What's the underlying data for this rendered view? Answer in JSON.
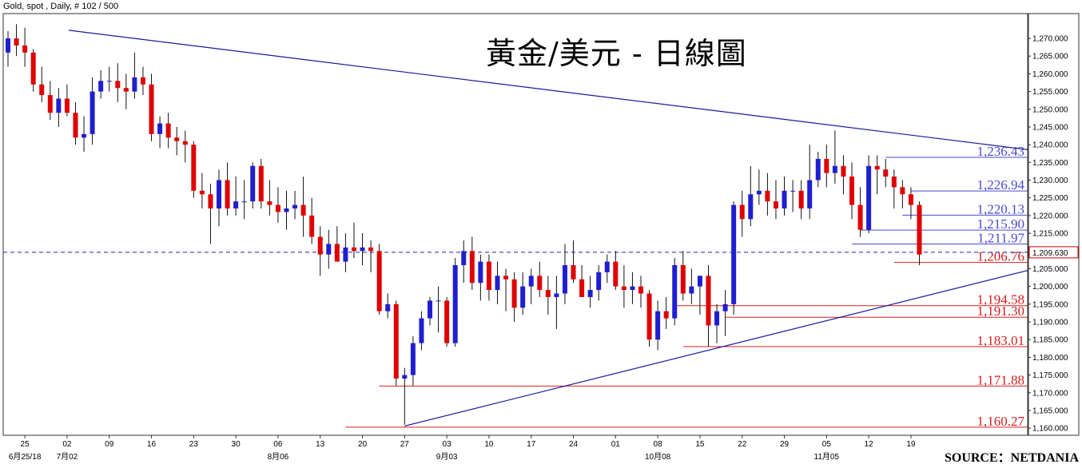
{
  "header": "Gold, spot , Daily, # 102 / 500",
  "title": "黃金/美元 - 日線圖",
  "source": "SOURCE：NETDANIA",
  "colors": {
    "up": "#1f1fd0",
    "down": "#e00000",
    "trend": "#1a1a99",
    "support": "#d42020",
    "resistance": "#4a4acc",
    "dashed": "#2222aa"
  },
  "chart_data": {
    "type": "candlestick",
    "ylim": [
      1158,
      1277
    ],
    "yticks": [
      1160,
      1165,
      1170,
      1175,
      1180,
      1185,
      1190,
      1195,
      1200,
      1205,
      1210,
      1215,
      1220,
      1225,
      1230,
      1235,
      1240,
      1245,
      1250,
      1255,
      1260,
      1265,
      1270
    ],
    "current_price": "1,209.630",
    "x_day_labels": [
      "25",
      "02",
      "09",
      "16",
      "23",
      "30",
      "06",
      "13",
      "20",
      "27",
      "03",
      "10",
      "17",
      "24",
      "01",
      "08",
      "15",
      "22",
      "29",
      "05",
      "12",
      "19"
    ],
    "x_month_labels": [
      {
        "label": "6月25/18",
        "at": "25"
      },
      {
        "label": "7月02",
        "at": "02"
      },
      {
        "label": "8月06",
        "at": "06"
      },
      {
        "label": "9月03",
        "at": "03"
      },
      {
        "label": "10月08",
        "at": "08"
      },
      {
        "label": "11月05",
        "at": "05"
      }
    ],
    "levels": [
      {
        "value": 1236.43,
        "label": "1,236.43",
        "kind": "resistance"
      },
      {
        "value": 1226.94,
        "label": "1,226.94",
        "kind": "resistance"
      },
      {
        "value": 1220.13,
        "label": "1,220.13",
        "kind": "resistance"
      },
      {
        "value": 1215.9,
        "label": "1,215.90",
        "kind": "resistance"
      },
      {
        "value": 1211.97,
        "label": "1,211.97",
        "kind": "resistance"
      },
      {
        "value": 1206.76,
        "label": "1,206.76",
        "kind": "support"
      },
      {
        "value": 1194.58,
        "label": "1,194.58",
        "kind": "support"
      },
      {
        "value": 1191.3,
        "label": "1,191.30",
        "kind": "support"
      },
      {
        "value": 1183.01,
        "label": "1,183.01",
        "kind": "support"
      },
      {
        "value": 1171.88,
        "label": "1,171.88",
        "kind": "support"
      },
      {
        "value": 1160.27,
        "label": "1,160.27",
        "kind": "support"
      }
    ],
    "candles": [
      [
        1266,
        1272,
        1262,
        1270
      ],
      [
        1270,
        1274,
        1265,
        1268
      ],
      [
        1268,
        1273,
        1262,
        1266
      ],
      [
        1266,
        1267,
        1255,
        1257
      ],
      [
        1257,
        1262,
        1252,
        1254
      ],
      [
        1254,
        1258,
        1247,
        1249
      ],
      [
        1249,
        1256,
        1245,
        1253
      ],
      [
        1253,
        1257,
        1248,
        1249
      ],
      [
        1249,
        1252,
        1240,
        1242
      ],
      [
        1242,
        1248,
        1238,
        1243
      ],
      [
        1243,
        1259,
        1240,
        1255
      ],
      [
        1255,
        1261,
        1253,
        1258
      ],
      [
        1258,
        1262,
        1255,
        1258
      ],
      [
        1258,
        1263,
        1252,
        1256
      ],
      [
        1256,
        1260,
        1250,
        1255
      ],
      [
        1255,
        1266,
        1253,
        1259
      ],
      [
        1259,
        1262,
        1254,
        1257
      ],
      [
        1257,
        1260,
        1241,
        1243
      ],
      [
        1243,
        1248,
        1239,
        1246
      ],
      [
        1246,
        1249,
        1239,
        1242
      ],
      [
        1242,
        1245,
        1237,
        1241
      ],
      [
        1241,
        1244,
        1235,
        1240
      ],
      [
        1240,
        1241,
        1225,
        1227
      ],
      [
        1227,
        1232,
        1222,
        1226
      ],
      [
        1226,
        1229,
        1212,
        1222
      ],
      [
        1222,
        1233,
        1217,
        1230
      ],
      [
        1230,
        1235,
        1220,
        1222
      ],
      [
        1222,
        1231,
        1220,
        1224
      ],
      [
        1224,
        1230,
        1219,
        1224
      ],
      [
        1224,
        1235,
        1222,
        1234
      ],
      [
        1234,
        1236,
        1222,
        1224
      ],
      [
        1224,
        1230,
        1220,
        1223
      ],
      [
        1223,
        1228,
        1218,
        1221
      ],
      [
        1221,
        1227,
        1216,
        1222
      ],
      [
        1222,
        1227,
        1219,
        1223
      ],
      [
        1223,
        1231,
        1214,
        1220
      ],
      [
        1220,
        1225,
        1212,
        1214
      ],
      [
        1214,
        1217,
        1203,
        1209
      ],
      [
        1209,
        1216,
        1205,
        1212
      ],
      [
        1212,
        1217,
        1207,
        1207
      ],
      [
        1207,
        1215,
        1204,
        1211
      ],
      [
        1211,
        1218,
        1208,
        1210
      ],
      [
        1210,
        1215,
        1206,
        1211
      ],
      [
        1211,
        1213,
        1204,
        1210
      ],
      [
        1210,
        1212,
        1192,
        1193
      ],
      [
        1193,
        1198,
        1191,
        1195
      ],
      [
        1195,
        1196,
        1172,
        1174
      ],
      [
        1174,
        1177,
        1161,
        1175
      ],
      [
        1175,
        1186,
        1172,
        1184
      ],
      [
        1184,
        1193,
        1182,
        1191
      ],
      [
        1191,
        1197,
        1189,
        1196
      ],
      [
        1196,
        1200,
        1187,
        1196
      ],
      [
        1196,
        1197,
        1183,
        1184
      ],
      [
        1184,
        1208,
        1183,
        1206
      ],
      [
        1206,
        1213,
        1201,
        1210
      ],
      [
        1210,
        1214,
        1199,
        1201
      ],
      [
        1201,
        1209,
        1196,
        1207
      ],
      [
        1207,
        1209,
        1196,
        1199
      ],
      [
        1199,
        1207,
        1195,
        1203
      ],
      [
        1203,
        1205,
        1193,
        1202
      ],
      [
        1202,
        1204,
        1190,
        1194
      ],
      [
        1194,
        1204,
        1192,
        1200
      ],
      [
        1200,
        1205,
        1195,
        1203
      ],
      [
        1203,
        1207,
        1197,
        1199
      ],
      [
        1199,
        1203,
        1192,
        1197
      ],
      [
        1197,
        1203,
        1188,
        1198
      ],
      [
        1198,
        1212,
        1195,
        1206
      ],
      [
        1206,
        1213,
        1201,
        1202
      ],
      [
        1202,
        1206,
        1197,
        1197
      ],
      [
        1197,
        1203,
        1194,
        1199
      ],
      [
        1199,
        1206,
        1196,
        1204
      ],
      [
        1204,
        1209,
        1201,
        1207
      ],
      [
        1207,
        1210,
        1199,
        1200
      ],
      [
        1200,
        1206,
        1194,
        1199
      ],
      [
        1199,
        1204,
        1195,
        1200
      ],
      [
        1200,
        1203,
        1194,
        1198
      ],
      [
        1198,
        1199,
        1183,
        1185
      ],
      [
        1185,
        1196,
        1182,
        1193
      ],
      [
        1193,
        1197,
        1188,
        1191
      ],
      [
        1191,
        1208,
        1189,
        1206
      ],
      [
        1206,
        1210,
        1196,
        1198
      ],
      [
        1198,
        1205,
        1195,
        1200
      ],
      [
        1200,
        1203,
        1192,
        1203
      ],
      [
        1203,
        1206,
        1183,
        1189
      ],
      [
        1189,
        1195,
        1184,
        1193
      ],
      [
        1193,
        1199,
        1186,
        1195
      ],
      [
        1195,
        1224,
        1192,
        1223
      ],
      [
        1223,
        1227,
        1214,
        1219
      ],
      [
        1219,
        1234,
        1217,
        1226
      ],
      [
        1226,
        1233,
        1223,
        1227
      ],
      [
        1227,
        1232,
        1220,
        1224
      ],
      [
        1224,
        1230,
        1219,
        1222
      ],
      [
        1222,
        1231,
        1220,
        1227
      ],
      [
        1227,
        1230,
        1221,
        1227
      ],
      [
        1227,
        1230,
        1219,
        1222
      ],
      [
        1222,
        1240,
        1219,
        1230
      ],
      [
        1230,
        1238,
        1228,
        1236
      ],
      [
        1236,
        1240,
        1228,
        1232
      ],
      [
        1232,
        1244,
        1229,
        1234
      ],
      [
        1234,
        1237,
        1226,
        1231
      ],
      [
        1231,
        1235,
        1219,
        1223
      ],
      [
        1223,
        1228,
        1214,
        1216
      ],
      [
        1216,
        1237,
        1215,
        1234
      ],
      [
        1234,
        1237,
        1226,
        1233
      ],
      [
        1233,
        1236,
        1228,
        1231
      ],
      [
        1231,
        1233,
        1222,
        1228
      ],
      [
        1228,
        1230,
        1222,
        1226
      ],
      [
        1226,
        1228,
        1219,
        1223
      ],
      [
        1223,
        1224,
        1206,
        1209
      ]
    ]
  }
}
